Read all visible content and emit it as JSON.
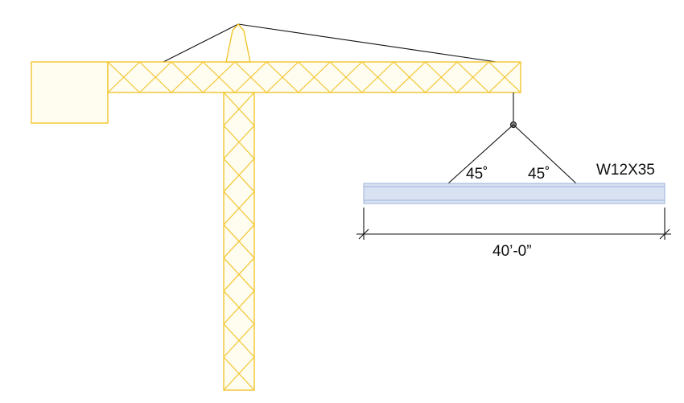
{
  "colors": {
    "crane_stroke": "#F2C62F",
    "crane_fill": "#FFFCF0",
    "beam_fill": "#D9E2F3",
    "beam_stroke": "#9DB2DA",
    "line": "#111111",
    "hook_fill": "#7F7F7F"
  },
  "labels": {
    "angle_left": "45˚",
    "angle_right": "45˚",
    "beam_designation": "W12X35",
    "beam_length": "40’-0”"
  },
  "crane": {
    "jib_panels": 13,
    "mast_panels": 9
  }
}
